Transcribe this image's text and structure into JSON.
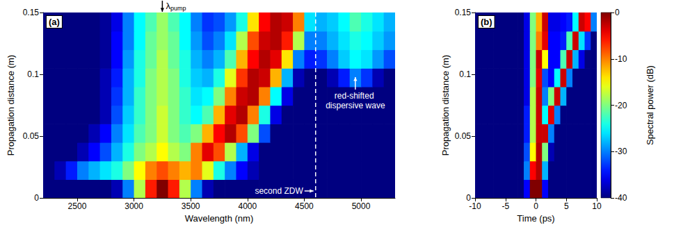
{
  "chart_data": [
    {
      "type": "heatmap",
      "panel": "(a)",
      "x_label": "Wavelength (nm)",
      "y_label": "Propagation distance (m)",
      "xlim": [
        2200,
        5300
      ],
      "ylim": [
        0,
        0.15
      ],
      "xticks": [
        2500,
        3000,
        3500,
        4000,
        4500,
        5000
      ],
      "yticks": [
        0,
        0.05,
        0.1,
        0.15
      ],
      "clim": [
        -40,
        0
      ],
      "x": [
        2250,
        2350,
        2450,
        2550,
        2650,
        2750,
        2850,
        2950,
        3050,
        3150,
        3250,
        3350,
        3450,
        3550,
        3650,
        3750,
        3850,
        3950,
        4050,
        4150,
        4250,
        4350,
        4450,
        4550,
        4650,
        4750,
        4850,
        4950,
        5050,
        5150,
        5250
      ],
      "y": [
        0.0075,
        0.0225,
        0.0375,
        0.0525,
        0.0675,
        0.0825,
        0.0975,
        0.1125,
        0.1275,
        0.1425
      ],
      "cells": [
        [
          -40,
          -40,
          -40,
          -40,
          -40,
          -40,
          -38,
          -30,
          -18,
          -6,
          0,
          -6,
          -18,
          -30,
          -38,
          -40,
          -40,
          -40,
          -40,
          -40,
          -40,
          -40,
          -40,
          -40,
          -40,
          -40,
          -40,
          -40,
          -40,
          -40,
          -40
        ],
        [
          -40,
          -38,
          -34,
          -30,
          -28,
          -26,
          -24,
          -20,
          -15,
          -10,
          -8,
          -10,
          -12,
          -10,
          -16,
          -24,
          -30,
          -35,
          -38,
          -40,
          -40,
          -40,
          -40,
          -40,
          -40,
          -40,
          -40,
          -40,
          -40,
          -40,
          -40
        ],
        [
          -40,
          -40,
          -40,
          -38,
          -35,
          -32,
          -28,
          -24,
          -20,
          -18,
          -15,
          -18,
          -20,
          -10,
          -4,
          -8,
          -18,
          -28,
          -36,
          -40,
          -40,
          -40,
          -40,
          -40,
          -40,
          -40,
          -40,
          -40,
          -40,
          -40,
          -40
        ],
        [
          -40,
          -40,
          -40,
          -40,
          -38,
          -35,
          -30,
          -26,
          -22,
          -20,
          -17,
          -20,
          -22,
          -20,
          -12,
          -5,
          -2,
          -8,
          -20,
          -32,
          -40,
          -40,
          -40,
          -40,
          -40,
          -40,
          -40,
          -40,
          -40,
          -40,
          -40
        ],
        [
          -40,
          -40,
          -40,
          -40,
          -40,
          -38,
          -32,
          -27,
          -23,
          -20,
          -17,
          -20,
          -23,
          -25,
          -22,
          -12,
          -4,
          -2,
          -10,
          -24,
          -36,
          -40,
          -40,
          -40,
          -40,
          -40,
          -40,
          -40,
          -40,
          -40,
          -40
        ],
        [
          -40,
          -40,
          -40,
          -40,
          -40,
          -38,
          -33,
          -28,
          -23,
          -20,
          -18,
          -20,
          -23,
          -26,
          -25,
          -20,
          -10,
          -3,
          -2,
          -10,
          -25,
          -36,
          -40,
          -40,
          -40,
          -40,
          -40,
          -40,
          -40,
          -40,
          -40
        ],
        [
          -40,
          -40,
          -40,
          -40,
          -40,
          -38,
          -34,
          -28,
          -24,
          -20,
          -18,
          -20,
          -24,
          -27,
          -28,
          -24,
          -16,
          -7,
          -2,
          -3,
          -12,
          -28,
          -38,
          -40,
          -40,
          -38,
          -34,
          -30,
          -33,
          -38,
          -40
        ],
        [
          -40,
          -40,
          -40,
          -40,
          -40,
          -39,
          -35,
          -29,
          -24,
          -21,
          -18,
          -21,
          -24,
          -28,
          -30,
          -28,
          -22,
          -12,
          -5,
          -2,
          -4,
          -14,
          -30,
          -34,
          -33,
          -30,
          -27,
          -25,
          -26,
          -29,
          -32
        ],
        [
          -40,
          -40,
          -40,
          -40,
          -40,
          -39,
          -35,
          -30,
          -25,
          -21,
          -19,
          -21,
          -25,
          -29,
          -32,
          -30,
          -26,
          -18,
          -8,
          -3,
          -2,
          -6,
          -18,
          -30,
          -30,
          -28,
          -26,
          -24,
          -25,
          -27,
          -29
        ],
        [
          -40,
          -40,
          -40,
          -40,
          -40,
          -39,
          -36,
          -30,
          -25,
          -22,
          -19,
          -22,
          -25,
          -30,
          -33,
          -32,
          -29,
          -24,
          -14,
          -5,
          -2,
          -3,
          -10,
          -26,
          -28,
          -27,
          -25,
          -22,
          -24,
          -26,
          -28
        ]
      ],
      "annotations": [
        {
          "text": "λpump",
          "x": 3250
        },
        {
          "text": "second ZDW",
          "x": 4600,
          "line_style": "dashed"
        },
        {
          "text": "red-shifted dispersive wave",
          "x": 4950,
          "y": 0.1
        }
      ]
    },
    {
      "type": "heatmap",
      "panel": "(b)",
      "x_label": "Time (ps)",
      "y_label": "Propagation distance (m)",
      "xlim": [
        -10,
        10
      ],
      "ylim": [
        0,
        0.15
      ],
      "xticks": [
        -10,
        -5,
        0,
        5,
        10
      ],
      "yticks": [
        0,
        0.05,
        0.1,
        0.15
      ],
      "colorbar": {
        "label": "Spectral power (dB)",
        "lim": [
          -40,
          0
        ],
        "ticks": [
          0,
          -10,
          -20,
          -30,
          -40
        ]
      },
      "x": [
        -9.5,
        -8.5,
        -7.5,
        -6.5,
        -5.5,
        -4.5,
        -3.5,
        -2.5,
        -1.5,
        -0.5,
        0.5,
        1.5,
        2.5,
        3.5,
        4.5,
        5.5,
        6.5,
        7.5,
        8.5,
        9.5
      ],
      "y": [
        0.0075,
        0.0225,
        0.0375,
        0.0525,
        0.0675,
        0.0825,
        0.0975,
        0.1125,
        0.1275,
        0.1425
      ],
      "cells": [
        [
          -40,
          -40,
          -40,
          -40,
          -40,
          -40,
          -40,
          -40,
          -35,
          0,
          0,
          -35,
          -40,
          -40,
          -40,
          -40,
          -40,
          -40,
          -40,
          -40
        ],
        [
          -40,
          -40,
          -40,
          -40,
          -40,
          -40,
          -40,
          -40,
          -30,
          -5,
          -2,
          -28,
          -40,
          -40,
          -40,
          -40,
          -40,
          -40,
          -40,
          -40
        ],
        [
          -40,
          -40,
          -40,
          -40,
          -40,
          -40,
          -40,
          -40,
          -32,
          -15,
          -2,
          -20,
          -38,
          -40,
          -40,
          -40,
          -40,
          -40,
          -40,
          -40
        ],
        [
          -40,
          -40,
          -40,
          -40,
          -40,
          -40,
          -40,
          -40,
          -34,
          -18,
          -3,
          -3,
          -30,
          -40,
          -40,
          -40,
          -40,
          -40,
          -40,
          -40
        ],
        [
          -40,
          -40,
          -40,
          -40,
          -40,
          -40,
          -40,
          -40,
          -34,
          -18,
          -3,
          -25,
          -4,
          -30,
          -40,
          -40,
          -40,
          -40,
          -40,
          -40
        ],
        [
          -40,
          -40,
          -40,
          -40,
          -40,
          -40,
          -40,
          -40,
          -36,
          -18,
          -3,
          -30,
          -20,
          -3,
          -28,
          -40,
          -40,
          -40,
          -40,
          -40
        ],
        [
          -40,
          -40,
          -40,
          -40,
          -40,
          -40,
          -40,
          -40,
          -36,
          -20,
          -4,
          -32,
          -35,
          -25,
          -3,
          -30,
          -40,
          -40,
          -40,
          -40
        ],
        [
          -40,
          -40,
          -40,
          -40,
          -40,
          -40,
          -40,
          -40,
          -36,
          -20,
          -3,
          -15,
          -35,
          -35,
          -22,
          -3,
          -28,
          -36,
          -40,
          -40
        ],
        [
          -40,
          -40,
          -40,
          -40,
          -40,
          -40,
          -40,
          -40,
          -36,
          -20,
          -10,
          -4,
          -35,
          -35,
          -34,
          -22,
          -3,
          -26,
          -33,
          -40
        ],
        [
          -40,
          -40,
          -40,
          -40,
          -40,
          -40,
          -40,
          -40,
          -36,
          -20,
          -12,
          -3,
          -36,
          -36,
          -35,
          -34,
          -25,
          -3,
          -5,
          -30
        ]
      ]
    }
  ]
}
